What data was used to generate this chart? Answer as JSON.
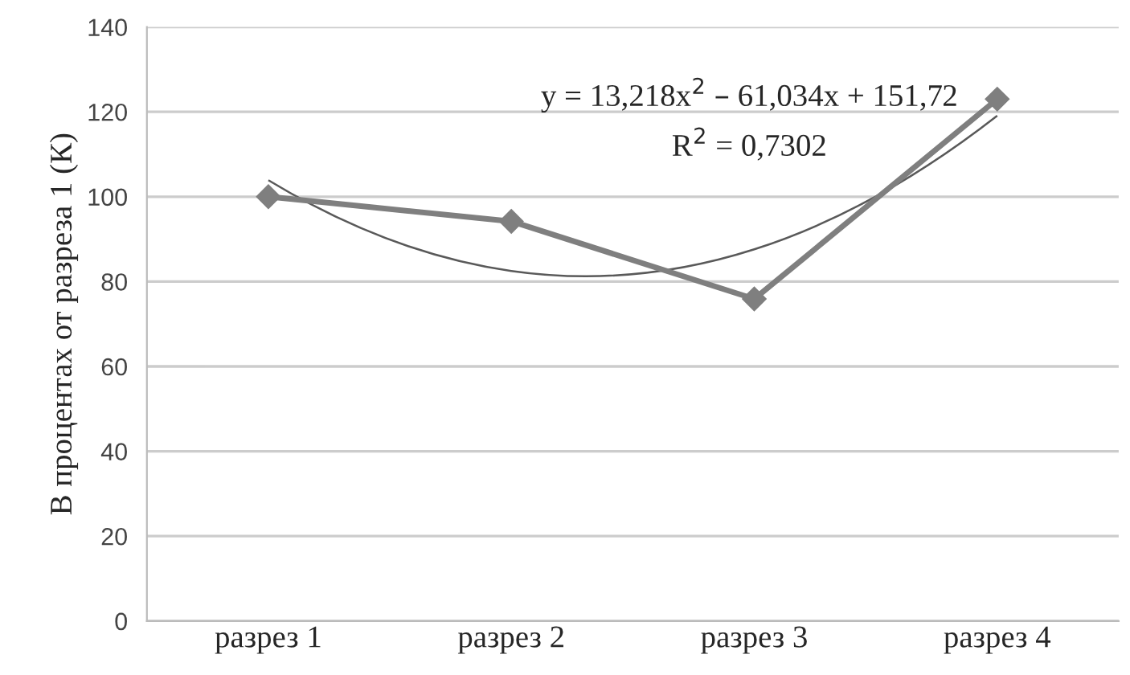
{
  "chart_data": {
    "type": "line",
    "ylabel": "В процентах от разреза 1 (К)",
    "categories": [
      "разрез 1",
      "разрез 2",
      "разрез 3",
      "разрез 4"
    ],
    "series": [
      {
        "color": "#7f7f7f",
        "values": [
          100,
          94.2,
          75.9,
          123
        ],
        "marker": "diamond"
      },
      {
        "type": "line",
        "color": "#595959",
        "marker": "none",
        "values": [
          103.9,
          82.5,
          87.6,
          119.1
        ]
      }
    ],
    "annotations": [
      "y = 13,218x$^{2}$ – 61,034x + 151,72",
      "R$^{2}$ = 0,7302"
    ],
    "ylim": [
      0,
      140
    ],
    "yticks": [
      0,
      20,
      40,
      60,
      80,
      100,
      120,
      140
    ],
    "grid": "y"
  }
}
